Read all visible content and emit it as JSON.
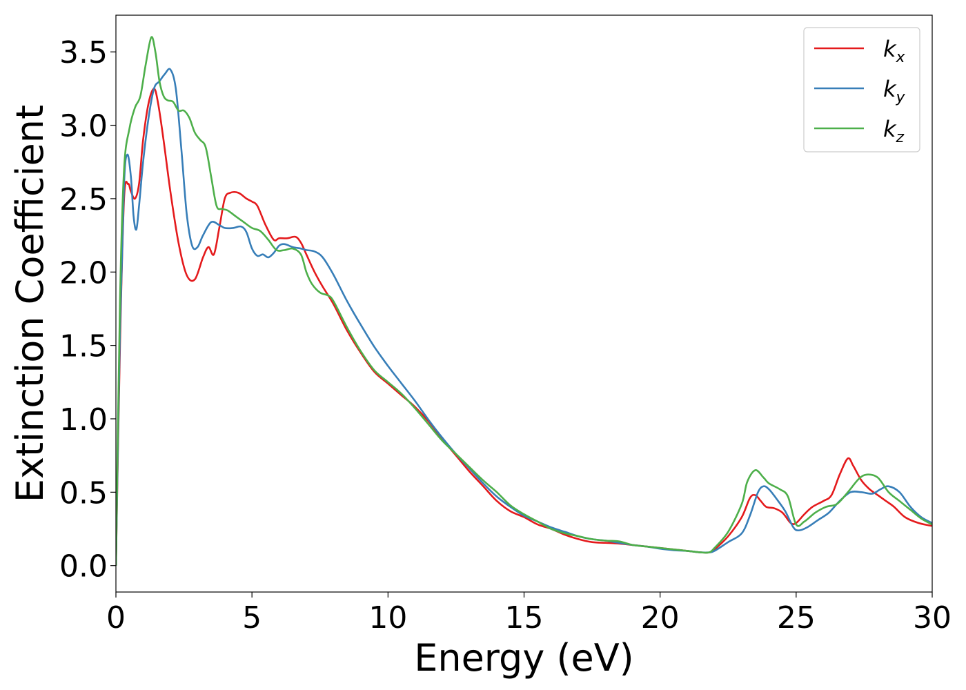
{
  "chart_data": {
    "type": "line",
    "xlabel": "Energy (eV)",
    "ylabel": "Extinction Coefficient",
    "xlim": [
      0,
      30
    ],
    "ylim": [
      -0.18,
      3.75
    ],
    "xticks": [
      0,
      5,
      10,
      15,
      20,
      25,
      30
    ],
    "xtick_labels": [
      "0",
      "5",
      "10",
      "15",
      "20",
      "25",
      "30"
    ],
    "yticks": [
      0.0,
      0.5,
      1.0,
      1.5,
      2.0,
      2.5,
      3.0,
      3.5
    ],
    "ytick_labels": [
      "0.0",
      "0.5",
      "1.0",
      "1.5",
      "2.0",
      "2.5",
      "3.0",
      "3.5"
    ],
    "grid": false,
    "legend_position": "top-right",
    "series": [
      {
        "name": "k",
        "sub": "x",
        "color": "#e41a1c",
        "x": [
          0,
          0.15,
          0.3,
          0.45,
          0.55,
          0.7,
          0.85,
          1.0,
          1.2,
          1.4,
          1.55,
          1.75,
          2.0,
          2.3,
          2.6,
          2.9,
          3.2,
          3.4,
          3.6,
          3.8,
          4.0,
          4.2,
          4.5,
          4.8,
          5.0,
          5.2,
          5.5,
          5.8,
          6.0,
          6.3,
          6.6,
          6.8,
          7.0,
          7.3,
          7.6,
          8.0,
          8.5,
          9.0,
          9.5,
          10.0,
          10.5,
          11.0,
          11.5,
          12.0,
          12.5,
          13.0,
          13.5,
          14.0,
          14.5,
          15.0,
          15.5,
          16.0,
          16.5,
          17.0,
          17.5,
          18.0,
          18.5,
          19.0,
          19.5,
          20.0,
          20.5,
          21.0,
          21.5,
          21.8,
          22.0,
          22.5,
          23.0,
          23.3,
          23.5,
          23.7,
          23.9,
          24.2,
          24.5,
          24.8,
          25.0,
          25.3,
          25.6,
          26.0,
          26.3,
          26.6,
          26.9,
          27.1,
          27.4,
          27.7,
          28.0,
          28.3,
          28.6,
          29.0,
          29.5,
          30.0
        ],
        "y": [
          0.0,
          1.5,
          2.5,
          2.6,
          2.55,
          2.5,
          2.6,
          2.9,
          3.15,
          3.25,
          3.15,
          2.9,
          2.55,
          2.2,
          1.98,
          1.95,
          2.1,
          2.17,
          2.12,
          2.3,
          2.5,
          2.54,
          2.54,
          2.5,
          2.48,
          2.45,
          2.32,
          2.22,
          2.23,
          2.23,
          2.24,
          2.2,
          2.12,
          2.0,
          1.9,
          1.78,
          1.6,
          1.45,
          1.32,
          1.24,
          1.16,
          1.08,
          0.98,
          0.86,
          0.75,
          0.64,
          0.54,
          0.44,
          0.37,
          0.33,
          0.28,
          0.25,
          0.21,
          0.18,
          0.16,
          0.155,
          0.15,
          0.14,
          0.13,
          0.12,
          0.11,
          0.1,
          0.09,
          0.09,
          0.11,
          0.2,
          0.33,
          0.46,
          0.48,
          0.44,
          0.4,
          0.39,
          0.36,
          0.29,
          0.29,
          0.35,
          0.4,
          0.44,
          0.48,
          0.62,
          0.73,
          0.68,
          0.58,
          0.52,
          0.48,
          0.44,
          0.4,
          0.33,
          0.29,
          0.27
        ]
      },
      {
        "name": "k",
        "sub": "y",
        "color": "#377eb8",
        "x": [
          0,
          0.15,
          0.3,
          0.42,
          0.55,
          0.65,
          0.75,
          0.85,
          1.0,
          1.2,
          1.4,
          1.6,
          1.8,
          2.0,
          2.2,
          2.4,
          2.6,
          2.8,
          3.0,
          3.2,
          3.5,
          3.8,
          4.0,
          4.3,
          4.6,
          4.8,
          5.0,
          5.2,
          5.4,
          5.6,
          5.8,
          6.0,
          6.2,
          6.5,
          6.8,
          7.0,
          7.3,
          7.6,
          8.0,
          8.5,
          9.0,
          9.5,
          10.0,
          10.5,
          11.0,
          11.5,
          12.0,
          12.5,
          13.0,
          13.5,
          14.0,
          14.5,
          15.0,
          15.5,
          16.0,
          16.5,
          17.0,
          17.5,
          18.0,
          18.5,
          19.0,
          19.5,
          20.0,
          20.5,
          21.0,
          21.5,
          21.8,
          22.0,
          22.5,
          23.0,
          23.3,
          23.6,
          23.8,
          24.0,
          24.3,
          24.6,
          24.9,
          25.1,
          25.4,
          25.8,
          26.2,
          26.6,
          27.0,
          27.4,
          27.8,
          28.1,
          28.4,
          28.8,
          29.2,
          29.6,
          30.0
        ],
        "y": [
          0.0,
          1.6,
          2.6,
          2.8,
          2.65,
          2.38,
          2.29,
          2.45,
          2.75,
          3.05,
          3.25,
          3.3,
          3.35,
          3.38,
          3.25,
          2.85,
          2.4,
          2.18,
          2.17,
          2.25,
          2.34,
          2.32,
          2.3,
          2.3,
          2.31,
          2.27,
          2.16,
          2.11,
          2.12,
          2.1,
          2.13,
          2.18,
          2.19,
          2.17,
          2.16,
          2.15,
          2.14,
          2.1,
          1.98,
          1.8,
          1.64,
          1.49,
          1.36,
          1.24,
          1.12,
          0.99,
          0.87,
          0.76,
          0.66,
          0.56,
          0.47,
          0.4,
          0.34,
          0.3,
          0.26,
          0.23,
          0.2,
          0.18,
          0.17,
          0.155,
          0.14,
          0.13,
          0.115,
          0.105,
          0.1,
          0.09,
          0.09,
          0.1,
          0.16,
          0.22,
          0.34,
          0.5,
          0.54,
          0.52,
          0.45,
          0.37,
          0.26,
          0.24,
          0.26,
          0.31,
          0.36,
          0.44,
          0.5,
          0.5,
          0.49,
          0.52,
          0.54,
          0.5,
          0.4,
          0.33,
          0.29
        ]
      },
      {
        "name": "k",
        "sub": "z",
        "color": "#4daf4a",
        "x": [
          0,
          0.15,
          0.3,
          0.5,
          0.7,
          0.9,
          1.1,
          1.3,
          1.45,
          1.6,
          1.75,
          1.9,
          2.1,
          2.3,
          2.5,
          2.7,
          2.9,
          3.1,
          3.3,
          3.5,
          3.7,
          3.9,
          4.1,
          4.4,
          4.7,
          5.0,
          5.3,
          5.6,
          5.9,
          6.2,
          6.5,
          6.8,
          7.0,
          7.2,
          7.5,
          7.8,
          8.0,
          8.5,
          9.0,
          9.5,
          10.0,
          10.5,
          11.0,
          11.5,
          12.0,
          12.5,
          13.0,
          13.5,
          14.0,
          14.5,
          15.0,
          15.5,
          16.0,
          16.5,
          17.0,
          17.5,
          18.0,
          18.5,
          19.0,
          19.5,
          20.0,
          20.5,
          21.0,
          21.5,
          21.8,
          22.0,
          22.5,
          23.0,
          23.2,
          23.5,
          23.8,
          24.0,
          24.4,
          24.7,
          25.0,
          25.3,
          25.7,
          26.1,
          26.5,
          26.9,
          27.3,
          27.6,
          28.0,
          28.4,
          28.8,
          29.2,
          29.6,
          30.0
        ],
        "y": [
          0.0,
          1.8,
          2.7,
          2.98,
          3.12,
          3.2,
          3.42,
          3.6,
          3.5,
          3.3,
          3.2,
          3.17,
          3.16,
          3.1,
          3.1,
          3.05,
          2.95,
          2.9,
          2.85,
          2.65,
          2.45,
          2.43,
          2.42,
          2.38,
          2.34,
          2.3,
          2.28,
          2.22,
          2.15,
          2.15,
          2.16,
          2.12,
          2.0,
          1.92,
          1.86,
          1.84,
          1.8,
          1.62,
          1.46,
          1.33,
          1.25,
          1.17,
          1.07,
          0.96,
          0.85,
          0.76,
          0.67,
          0.58,
          0.5,
          0.41,
          0.35,
          0.3,
          0.25,
          0.22,
          0.2,
          0.18,
          0.17,
          0.165,
          0.14,
          0.13,
          0.12,
          0.11,
          0.1,
          0.09,
          0.09,
          0.12,
          0.23,
          0.42,
          0.57,
          0.65,
          0.6,
          0.56,
          0.52,
          0.47,
          0.28,
          0.3,
          0.36,
          0.4,
          0.42,
          0.5,
          0.59,
          0.62,
          0.6,
          0.5,
          0.44,
          0.38,
          0.32,
          0.28
        ]
      }
    ]
  }
}
